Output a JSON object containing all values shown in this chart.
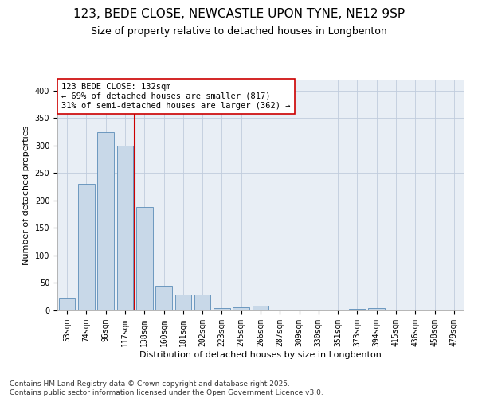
{
  "title_line1": "123, BEDE CLOSE, NEWCASTLE UPON TYNE, NE12 9SP",
  "title_line2": "Size of property relative to detached houses in Longbenton",
  "xlabel": "Distribution of detached houses by size in Longbenton",
  "ylabel": "Number of detached properties",
  "categories": [
    "53sqm",
    "74sqm",
    "96sqm",
    "117sqm",
    "138sqm",
    "160sqm",
    "181sqm",
    "202sqm",
    "223sqm",
    "245sqm",
    "266sqm",
    "287sqm",
    "309sqm",
    "330sqm",
    "351sqm",
    "373sqm",
    "394sqm",
    "415sqm",
    "436sqm",
    "458sqm",
    "479sqm"
  ],
  "values": [
    22,
    230,
    325,
    300,
    188,
    45,
    29,
    29,
    5,
    6,
    8,
    1,
    0,
    0,
    0,
    3,
    5,
    0,
    0,
    0,
    2
  ],
  "bar_color": "#c8d8e8",
  "bar_edge_color": "#5b8db8",
  "vline_x": 3.5,
  "vline_color": "#cc0000",
  "annotation_text": "123 BEDE CLOSE: 132sqm\n← 69% of detached houses are smaller (817)\n31% of semi-detached houses are larger (362) →",
  "annotation_box_color": "#ffffff",
  "annotation_box_edge": "#cc0000",
  "ylim": [
    0,
    420
  ],
  "yticks": [
    0,
    50,
    100,
    150,
    200,
    250,
    300,
    350,
    400
  ],
  "grid_color": "#c0ccdd",
  "background_color": "#e8eef5",
  "footer_line1": "Contains HM Land Registry data © Crown copyright and database right 2025.",
  "footer_line2": "Contains public sector information licensed under the Open Government Licence v3.0.",
  "title_fontsize": 11,
  "subtitle_fontsize": 9,
  "annotation_fontsize": 7.5,
  "footer_fontsize": 6.5,
  "ylabel_fontsize": 8,
  "xlabel_fontsize": 8,
  "tick_fontsize": 7
}
